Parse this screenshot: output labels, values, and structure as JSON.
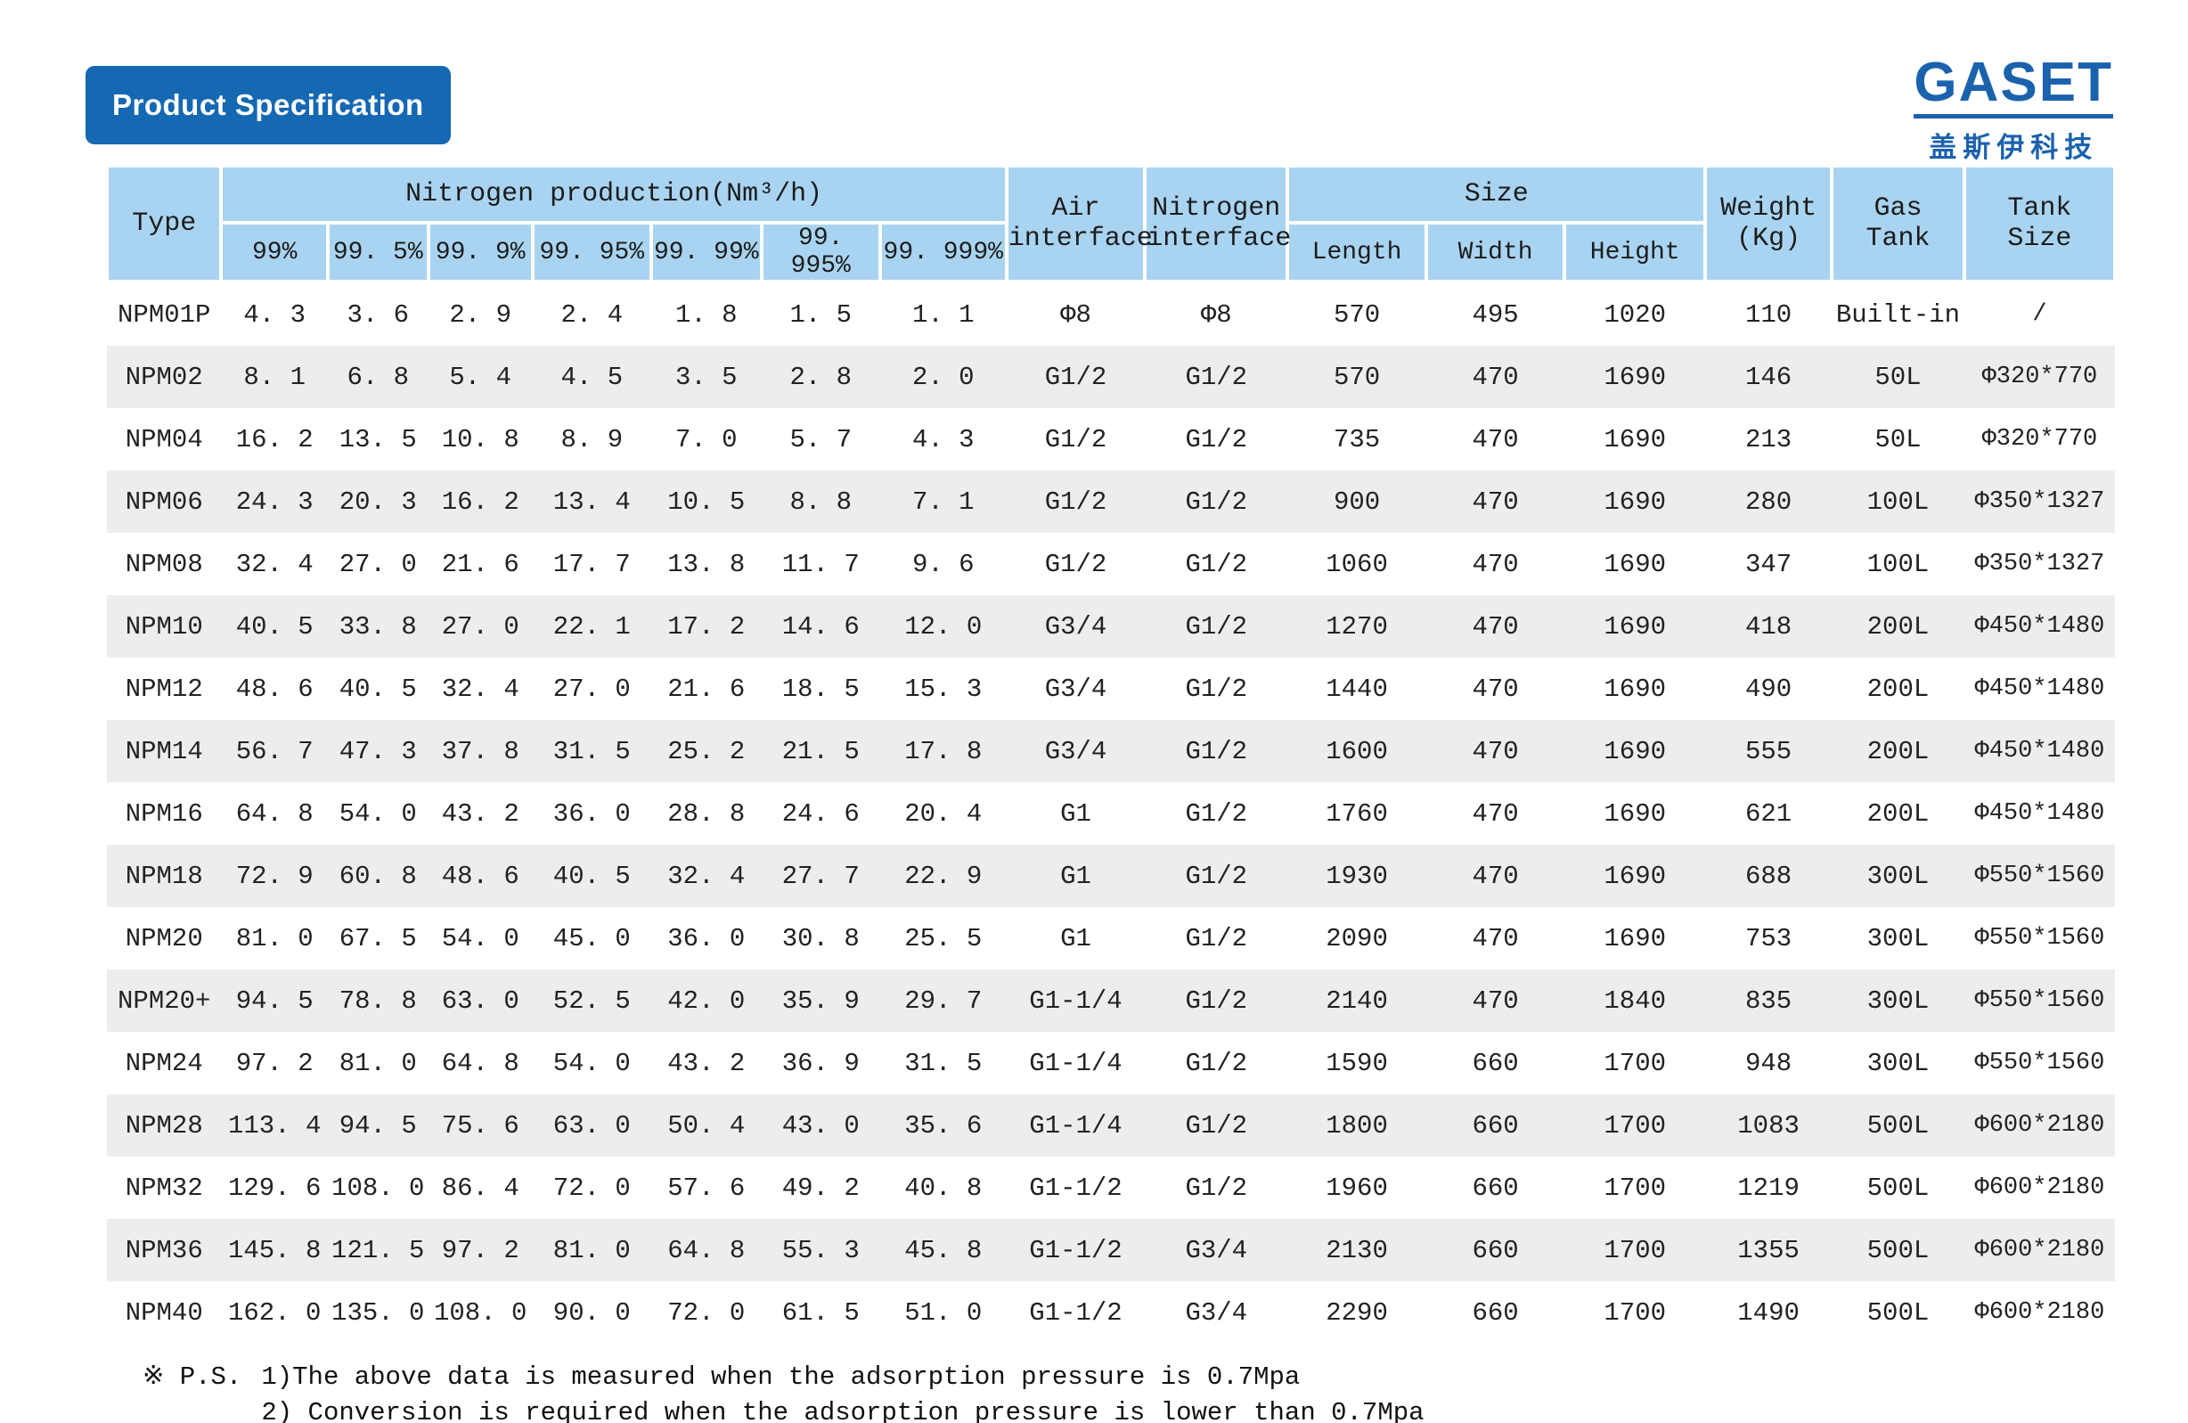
{
  "header": {
    "badge": "Product Specification",
    "logo_text": "GASET",
    "logo_subtext": "盖斯伊科技"
  },
  "table": {
    "headers": {
      "type": "Type",
      "nitrogen_production": "Nitrogen production(Nm³/h)",
      "purities": [
        "99%",
        "99. 5%",
        "99. 9%",
        "99. 95%",
        "99. 99%",
        "99. 995%",
        "99. 999%"
      ],
      "air_interface": "Air\ninterface",
      "nitrogen_interface": "Nitrogen\ninterface",
      "size": "Size",
      "size_sub": [
        "Length",
        "Width",
        "Height"
      ],
      "weight": "Weight\n(Kg)",
      "gas_tank": "Gas\nTank",
      "tank_size": "Tank\nSize"
    },
    "rows": [
      [
        "NPM01P",
        "4. 3",
        "3. 6",
        "2. 9",
        "2. 4",
        "1. 8",
        "1. 5",
        "1. 1",
        "Φ8",
        "Φ8",
        "570",
        "495",
        "1020",
        "110",
        "Built-in",
        "/"
      ],
      [
        "NPM02",
        "8. 1",
        "6. 8",
        "5. 4",
        "4. 5",
        "3. 5",
        "2. 8",
        "2. 0",
        "G1/2",
        "G1/2",
        "570",
        "470",
        "1690",
        "146",
        "50L",
        "Φ320*770"
      ],
      [
        "NPM04",
        "16. 2",
        "13. 5",
        "10. 8",
        "8. 9",
        "7. 0",
        "5. 7",
        "4. 3",
        "G1/2",
        "G1/2",
        "735",
        "470",
        "1690",
        "213",
        "50L",
        "Φ320*770"
      ],
      [
        "NPM06",
        "24. 3",
        "20. 3",
        "16. 2",
        "13. 4",
        "10. 5",
        "8. 8",
        "7. 1",
        "G1/2",
        "G1/2",
        "900",
        "470",
        "1690",
        "280",
        "100L",
        "Φ350*1327"
      ],
      [
        "NPM08",
        "32. 4",
        "27. 0",
        "21. 6",
        "17. 7",
        "13. 8",
        "11. 7",
        "9. 6",
        "G1/2",
        "G1/2",
        "1060",
        "470",
        "1690",
        "347",
        "100L",
        "Φ350*1327"
      ],
      [
        "NPM10",
        "40. 5",
        "33. 8",
        "27. 0",
        "22. 1",
        "17. 2",
        "14. 6",
        "12. 0",
        "G3/4",
        "G1/2",
        "1270",
        "470",
        "1690",
        "418",
        "200L",
        "Φ450*1480"
      ],
      [
        "NPM12",
        "48. 6",
        "40. 5",
        "32. 4",
        "27. 0",
        "21. 6",
        "18. 5",
        "15. 3",
        "G3/4",
        "G1/2",
        "1440",
        "470",
        "1690",
        "490",
        "200L",
        "Φ450*1480"
      ],
      [
        "NPM14",
        "56. 7",
        "47. 3",
        "37. 8",
        "31. 5",
        "25. 2",
        "21. 5",
        "17. 8",
        "G3/4",
        "G1/2",
        "1600",
        "470",
        "1690",
        "555",
        "200L",
        "Φ450*1480"
      ],
      [
        "NPM16",
        "64. 8",
        "54. 0",
        "43. 2",
        "36. 0",
        "28. 8",
        "24. 6",
        "20. 4",
        "G1",
        "G1/2",
        "1760",
        "470",
        "1690",
        "621",
        "200L",
        "Φ450*1480"
      ],
      [
        "NPM18",
        "72. 9",
        "60. 8",
        "48. 6",
        "40. 5",
        "32. 4",
        "27. 7",
        "22. 9",
        "G1",
        "G1/2",
        "1930",
        "470",
        "1690",
        "688",
        "300L",
        "Φ550*1560"
      ],
      [
        "NPM20",
        "81. 0",
        "67. 5",
        "54. 0",
        "45. 0",
        "36. 0",
        "30. 8",
        "25. 5",
        "G1",
        "G1/2",
        "2090",
        "470",
        "1690",
        "753",
        "300L",
        "Φ550*1560"
      ],
      [
        "NPM20+",
        "94. 5",
        "78. 8",
        "63. 0",
        "52. 5",
        "42. 0",
        "35. 9",
        "29. 7",
        "G1-1/4",
        "G1/2",
        "2140",
        "470",
        "1840",
        "835",
        "300L",
        "Φ550*1560"
      ],
      [
        "NPM24",
        "97. 2",
        "81. 0",
        "64. 8",
        "54. 0",
        "43. 2",
        "36. 9",
        "31. 5",
        "G1-1/4",
        "G1/2",
        "1590",
        "660",
        "1700",
        "948",
        "300L",
        "Φ550*1560"
      ],
      [
        "NPM28",
        "113. 4",
        "94. 5",
        "75. 6",
        "63. 0",
        "50. 4",
        "43. 0",
        "35. 6",
        "G1-1/4",
        "G1/2",
        "1800",
        "660",
        "1700",
        "1083",
        "500L",
        "Φ600*2180"
      ],
      [
        "NPM32",
        "129. 6",
        "108. 0",
        "86. 4",
        "72. 0",
        "57. 6",
        "49. 2",
        "40. 8",
        "G1-1/2",
        "G1/2",
        "1960",
        "660",
        "1700",
        "1219",
        "500L",
        "Φ600*2180"
      ],
      [
        "NPM36",
        "145. 8",
        "121. 5",
        "97. 2",
        "81. 0",
        "64. 8",
        "55. 3",
        "45. 8",
        "G1-1/2",
        "G3/4",
        "2130",
        "660",
        "1700",
        "1355",
        "500L",
        "Φ600*2180"
      ],
      [
        "NPM40",
        "162. 0",
        "135. 0",
        "108. 0",
        "90. 0",
        "72. 0",
        "61. 5",
        "51. 0",
        "G1-1/2",
        "G3/4",
        "2290",
        "660",
        "1700",
        "1490",
        "500L",
        "Φ600*2180"
      ]
    ]
  },
  "notes": {
    "marker": "※ P.S.",
    "lines": [
      "1)The above data is measured when the adsorption pressure is 0.7Mpa",
      "2) Conversion is required when the adsorption pressure is lower than 0.7Mpa"
    ]
  },
  "colors": {
    "header_blue": "#a9d4f1",
    "badge_blue": "#1568b2",
    "logo_blue": "#1b62ad",
    "stripe_gray": "#ededed"
  }
}
